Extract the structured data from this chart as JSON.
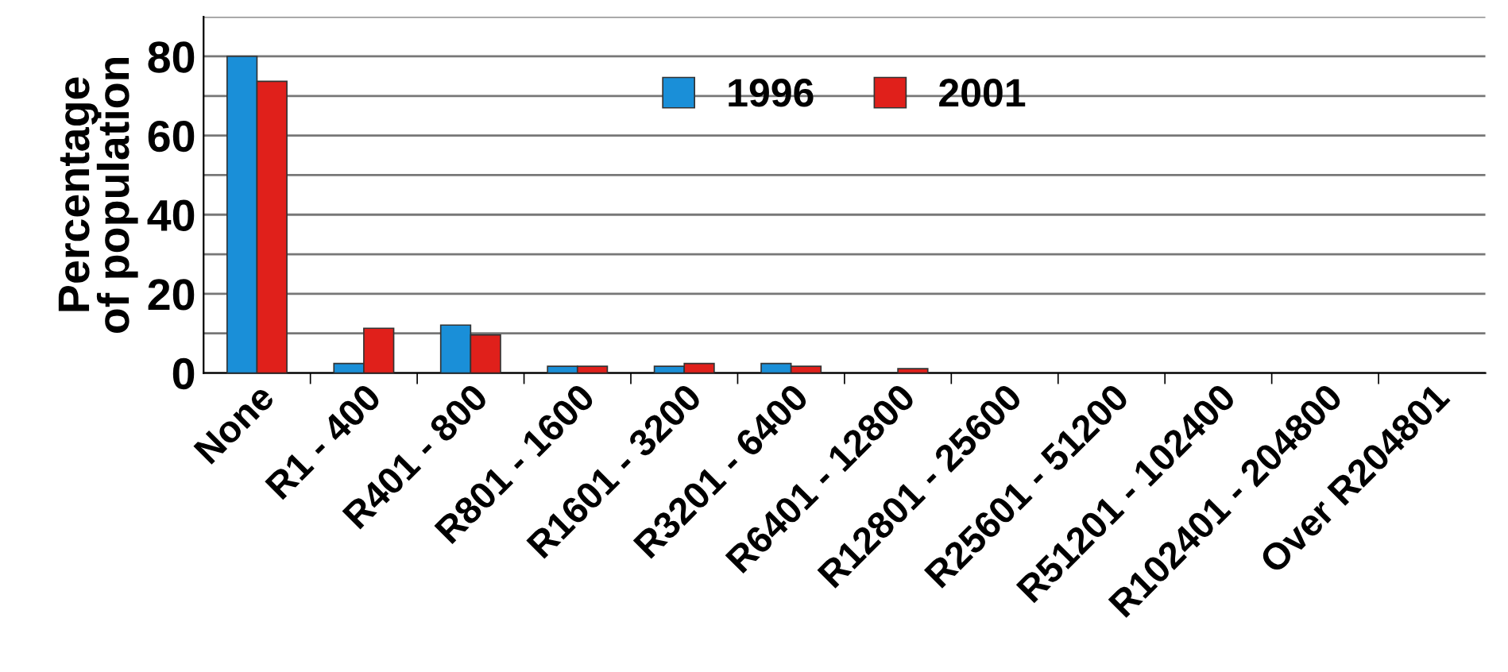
{
  "chart_data": {
    "type": "bar",
    "ylabel": "Percentage\nof population",
    "categories": [
      "None",
      "R1 - 400",
      "R401 - 800",
      "R801 - 1600",
      "R1601 - 3200",
      "R3201 - 6400",
      "R6401 - 12800",
      "R12801 - 25600",
      "R25601 - 51200",
      "R51201 - 102400",
      "R102401 - 204800",
      "Over R204801"
    ],
    "series": [
      {
        "name": "1996",
        "color": "#1a8fd8",
        "values": [
          80,
          2.4,
          12.1,
          1.7,
          1.7,
          2.4,
          0,
          0,
          0,
          0,
          0,
          0
        ]
      },
      {
        "name": "2001",
        "color": "#e0201b",
        "values": [
          73.7,
          11.3,
          9.6,
          1.7,
          2.4,
          1.7,
          1.1,
          0,
          0,
          0,
          0,
          0
        ]
      }
    ],
    "ylim": [
      0,
      90
    ],
    "yticks": [
      0,
      {
        "value": 10,
        "label": null
      },
      20,
      {
        "value": 30,
        "label": null
      },
      40,
      {
        "value": 50,
        "label": null
      },
      60,
      {
        "value": 70,
        "label": null
      },
      80,
      {
        "value": 90,
        "label": null
      }
    ],
    "grid": "y",
    "legend": "top"
  }
}
